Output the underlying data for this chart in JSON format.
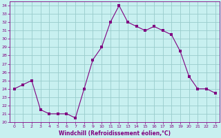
{
  "x": [
    0,
    1,
    2,
    3,
    4,
    5,
    6,
    7,
    8,
    9,
    10,
    11,
    12,
    13,
    14,
    15,
    16,
    17,
    18,
    19,
    20,
    21,
    22,
    23
  ],
  "y": [
    24,
    24.5,
    25,
    21.5,
    21,
    21,
    21,
    20.5,
    24,
    27.5,
    29,
    32,
    34,
    32,
    31.5,
    31,
    31.5,
    31,
    30.5,
    28.5,
    25.5,
    24,
    24,
    23.5
  ],
  "line_color": "#800080",
  "marker": "s",
  "marker_size": 2.2,
  "bg_color": "#c8f0f0",
  "grid_color": "#99cccc",
  "xlabel": "Windchill (Refroidissement éolien,°C)",
  "xlabel_color": "#800080",
  "tick_color": "#800080",
  "ylim": [
    20,
    34.5
  ],
  "xlim": [
    -0.5,
    23.5
  ],
  "yticks": [
    20,
    21,
    22,
    23,
    24,
    25,
    26,
    27,
    28,
    29,
    30,
    31,
    32,
    33,
    34
  ],
  "xticks": [
    0,
    1,
    2,
    3,
    4,
    5,
    6,
    7,
    8,
    9,
    10,
    11,
    12,
    13,
    14,
    15,
    16,
    17,
    18,
    19,
    20,
    21,
    22,
    23
  ]
}
